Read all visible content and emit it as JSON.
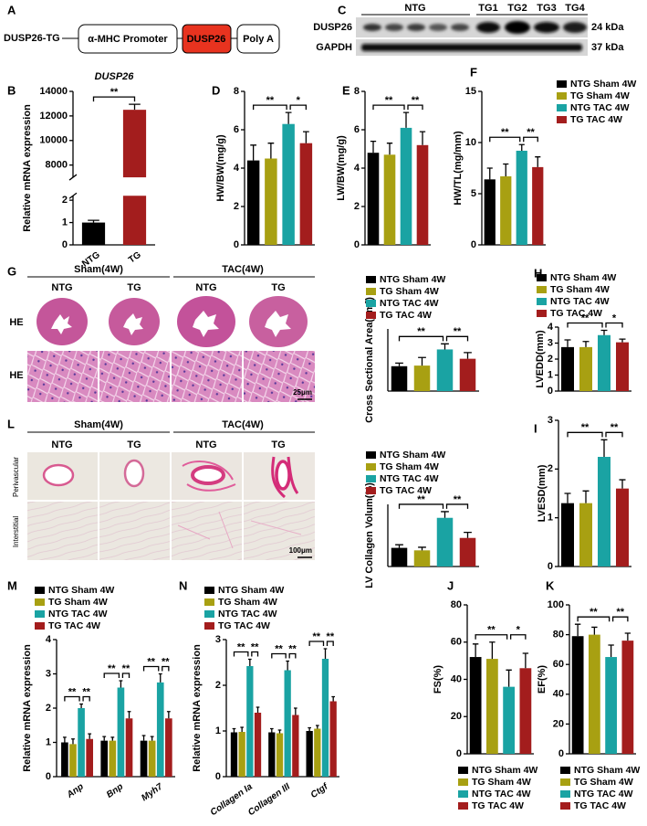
{
  "construct": {
    "label": "A",
    "name": "DUSP26-TG",
    "elements": [
      "α-MHC Promoter",
      "DUSP26",
      "Poly A"
    ]
  },
  "blot": {
    "label": "C",
    "groups": [
      "NTG",
      "TG1",
      "TG2",
      "TG3",
      "TG4"
    ],
    "rows": [
      {
        "name": "DUSP26",
        "size": "24 kDa"
      },
      {
        "name": "GAPDH",
        "size": "37 kDa"
      }
    ]
  },
  "histology": [
    {
      "label": "G",
      "conditions": [
        "Sham(4W)",
        "TAC(4W)"
      ],
      "columns": [
        "NTG",
        "TG",
        "NTG",
        "TG"
      ],
      "rows": [
        "HE",
        "HE"
      ],
      "scale_bar": "25μm"
    },
    {
      "label": "L",
      "conditions": [
        "Sham(4W)",
        "TAC(4W)"
      ],
      "columns": [
        "NTG",
        "TG",
        "NTG",
        "TG"
      ],
      "rows": [
        "Perivascular",
        "Interstitial"
      ],
      "scale_bar": "100μm"
    }
  ],
  "chart_data": [
    {
      "type": "bar",
      "label": "B",
      "title": "DUSP26",
      "ylabel": "Relative mRNA expression",
      "categories": [
        "NTG",
        "TG"
      ],
      "values": [
        1.0,
        12500
      ],
      "errors": [
        0.1,
        450
      ],
      "colors": [
        "#000000",
        "#a31d1d"
      ],
      "ylim": [
        0,
        14000
      ],
      "axis_break": [
        2.2,
        7000
      ],
      "yticks": [
        0,
        1,
        2,
        8000,
        10000,
        12000,
        14000
      ],
      "annotations": [
        "**"
      ]
    },
    {
      "type": "bar",
      "label": "D",
      "ylabel": "HW/BW(mg/g)",
      "ylim": [
        0,
        8
      ],
      "yticks": [
        0,
        2,
        4,
        6,
        8
      ],
      "annotations": [
        "**",
        "*"
      ],
      "series": [
        {
          "color": "#000000",
          "values": [
            4.4
          ],
          "errors": [
            0.8
          ]
        },
        {
          "color": "#a8a012",
          "values": [
            4.5
          ],
          "errors": [
            0.8
          ]
        },
        {
          "color": "#1aa3a3",
          "values": [
            6.3
          ],
          "errors": [
            0.6
          ]
        },
        {
          "color": "#a31d1d",
          "values": [
            5.3
          ],
          "errors": [
            0.6
          ]
        }
      ]
    },
    {
      "type": "bar",
      "label": "E",
      "ylabel": "LW/BW(mg/g)",
      "ylim": [
        0,
        8
      ],
      "yticks": [
        0,
        2,
        4,
        6,
        8
      ],
      "annotations": [
        "**",
        "**"
      ],
      "series": [
        {
          "color": "#000000",
          "values": [
            4.8
          ],
          "errors": [
            0.6
          ]
        },
        {
          "color": "#a8a012",
          "values": [
            4.7
          ],
          "errors": [
            0.6
          ]
        },
        {
          "color": "#1aa3a3",
          "values": [
            6.1
          ],
          "errors": [
            0.8
          ]
        },
        {
          "color": "#a31d1d",
          "values": [
            5.2
          ],
          "errors": [
            0.7
          ]
        }
      ]
    },
    {
      "type": "bar",
      "label": "F",
      "ylabel": "HW/TL(mg/mm)",
      "ylim": [
        0,
        15
      ],
      "yticks": [
        0,
        5,
        10,
        15
      ],
      "annotations": [
        "**",
        "**"
      ],
      "legend": "right",
      "series": [
        {
          "name": "NTG Sham 4W",
          "color": "#000000",
          "values": [
            6.4
          ],
          "errors": [
            1.1
          ]
        },
        {
          "name": "TG Sham 4W",
          "color": "#a8a012",
          "values": [
            6.7
          ],
          "errors": [
            1.2
          ]
        },
        {
          "name": "NTG TAC 4W",
          "color": "#1aa3a3",
          "values": [
            9.2
          ],
          "errors": [
            0.6
          ]
        },
        {
          "name": "TG TAC 4W",
          "color": "#a31d1d",
          "values": [
            7.6
          ],
          "errors": [
            1.0
          ]
        }
      ]
    },
    {
      "type": "bar",
      "ylabel": "Cross Sectional Area(μm²)",
      "ylim": [
        0,
        500
      ],
      "annotations": [
        "**",
        "**"
      ],
      "legend": "top",
      "series": [
        {
          "name": "NTG Sham 4W",
          "color": "#000000",
          "values": [
            200
          ],
          "errors": [
            25
          ]
        },
        {
          "name": "TG Sham 4W",
          "color": "#a8a012",
          "values": [
            205
          ],
          "errors": [
            65
          ]
        },
        {
          "name": "NTG TAC 4W",
          "color": "#1aa3a3",
          "values": [
            335
          ],
          "errors": [
            45
          ]
        },
        {
          "name": "TG TAC 4W",
          "color": "#a31d1d",
          "values": [
            260
          ],
          "errors": [
            50
          ]
        }
      ]
    },
    {
      "type": "bar",
      "label": "H",
      "ylabel": "LVEDD(mm)",
      "ylim": [
        0,
        4
      ],
      "yticks": [
        0,
        1,
        2,
        3,
        4
      ],
      "annotations": [
        "**",
        "*"
      ],
      "legend": "top",
      "series": [
        {
          "name": "NTG Sham 4W",
          "color": "#000000",
          "values": [
            2.75
          ],
          "errors": [
            0.45
          ]
        },
        {
          "name": "TG Sham 4W",
          "color": "#a8a012",
          "values": [
            2.75
          ],
          "errors": [
            0.35
          ]
        },
        {
          "name": "NTG TAC 4W",
          "color": "#1aa3a3",
          "values": [
            3.5
          ],
          "errors": [
            0.3
          ]
        },
        {
          "name": "TG TAC 4W",
          "color": "#a31d1d",
          "values": [
            3.05
          ],
          "errors": [
            0.2
          ]
        }
      ]
    },
    {
      "type": "bar",
      "ylabel": "LV Collagen Volum(%)",
      "ylim": [
        0,
        3
      ],
      "annotations": [
        "**",
        "**"
      ],
      "legend": "top",
      "series": [
        {
          "name": "NTG Sham 4W",
          "color": "#000000",
          "values": [
            0.9
          ],
          "errors": [
            0.15
          ]
        },
        {
          "name": "TG Sham 4W",
          "color": "#a8a012",
          "values": [
            0.78
          ],
          "errors": [
            0.15
          ]
        },
        {
          "name": "NTG TAC 4W",
          "color": "#1aa3a3",
          "values": [
            2.35
          ],
          "errors": [
            0.3
          ]
        },
        {
          "name": "TG TAC 4W",
          "color": "#a31d1d",
          "values": [
            1.38
          ],
          "errors": [
            0.27
          ]
        }
      ]
    },
    {
      "type": "bar",
      "label": "I",
      "ylabel": "LVESD(mm)",
      "ylim": [
        0,
        3
      ],
      "yticks": [
        0,
        1,
        2,
        3
      ],
      "annotations": [
        "**",
        "**"
      ],
      "series": [
        {
          "color": "#000000",
          "values": [
            1.3
          ],
          "errors": [
            0.2
          ]
        },
        {
          "color": "#a8a012",
          "values": [
            1.3
          ],
          "errors": [
            0.25
          ]
        },
        {
          "color": "#1aa3a3",
          "values": [
            2.25
          ],
          "errors": [
            0.35
          ]
        },
        {
          "color": "#a31d1d",
          "values": [
            1.6
          ],
          "errors": [
            0.18
          ]
        }
      ]
    },
    {
      "type": "bar",
      "label": "M",
      "ylabel": "Relative mRNA expression",
      "categories": [
        "Anp",
        "Bnp",
        "Myh7"
      ],
      "ylim": [
        0,
        4
      ],
      "yticks": [
        0,
        1,
        2,
        3,
        4
      ],
      "annotations": [
        "**",
        "**",
        "**",
        "**",
        "**",
        "**"
      ],
      "legend": "top",
      "series": [
        {
          "name": "NTG Sham 4W",
          "color": "#000000",
          "values": [
            1.0,
            1.05,
            1.05
          ],
          "errors": [
            0.15,
            0.12,
            0.15
          ]
        },
        {
          "name": "TG Sham 4W",
          "color": "#a8a012",
          "values": [
            0.95,
            1.05,
            1.05
          ],
          "errors": [
            0.15,
            0.1,
            0.12
          ]
        },
        {
          "name": "NTG TAC 4W",
          "color": "#1aa3a3",
          "values": [
            2.0,
            2.6,
            2.75
          ],
          "errors": [
            0.12,
            0.2,
            0.25
          ]
        },
        {
          "name": "TG TAC 4W",
          "color": "#a31d1d",
          "values": [
            1.1,
            1.7,
            1.7
          ],
          "errors": [
            0.15,
            0.2,
            0.2
          ]
        }
      ]
    },
    {
      "type": "bar",
      "label": "N",
      "ylabel": "Relative mRNA expression",
      "categories": [
        "Collagen Ia",
        "Collagen III",
        "Ctgf"
      ],
      "ylim": [
        0,
        3
      ],
      "yticks": [
        0,
        1,
        2,
        3
      ],
      "annotations": [
        "**",
        "**",
        "**",
        "**",
        "**",
        "**"
      ],
      "legend": "top",
      "series": [
        {
          "name": "NTG Sham 4W",
          "color": "#000000",
          "values": [
            0.97,
            0.97,
            1.0
          ],
          "errors": [
            0.08,
            0.08,
            0.07
          ]
        },
        {
          "name": "TG Sham 4W",
          "color": "#a8a012",
          "values": [
            0.98,
            0.95,
            1.05
          ],
          "errors": [
            0.1,
            0.07,
            0.07
          ]
        },
        {
          "name": "NTG TAC 4W",
          "color": "#1aa3a3",
          "values": [
            2.42,
            2.33,
            2.58
          ],
          "errors": [
            0.15,
            0.2,
            0.22
          ]
        },
        {
          "name": "TG TAC 4W",
          "color": "#a31d1d",
          "values": [
            1.4,
            1.35,
            1.65
          ],
          "errors": [
            0.12,
            0.15,
            0.1
          ]
        }
      ]
    },
    {
      "type": "bar",
      "label": "J",
      "ylabel": "FS(%)",
      "ylim": [
        0,
        80
      ],
      "yticks": [
        0,
        20,
        40,
        60,
        80
      ],
      "annotations": [
        "**",
        "*"
      ],
      "legend": "bottom",
      "series": [
        {
          "name": "NTG Sham 4W",
          "color": "#000000",
          "values": [
            52
          ],
          "errors": [
            7
          ]
        },
        {
          "name": "TG Sham 4W",
          "color": "#a8a012",
          "values": [
            51
          ],
          "errors": [
            9
          ]
        },
        {
          "name": "NTG TAC 4W",
          "color": "#1aa3a3",
          "values": [
            36
          ],
          "errors": [
            9
          ]
        },
        {
          "name": "TG TAC 4W",
          "color": "#a31d1d",
          "values": [
            46
          ],
          "errors": [
            8
          ]
        }
      ]
    },
    {
      "type": "bar",
      "label": "K",
      "ylabel": "EF(%)",
      "ylim": [
        0,
        100
      ],
      "yticks": [
        0,
        20,
        40,
        60,
        80,
        100
      ],
      "annotations": [
        "**",
        "**"
      ],
      "legend": "bottom",
      "series": [
        {
          "name": "NTG Sham 4W",
          "color": "#000000",
          "values": [
            79
          ],
          "errors": [
            8
          ]
        },
        {
          "name": "TG Sham 4W",
          "color": "#a8a012",
          "values": [
            80
          ],
          "errors": [
            5
          ]
        },
        {
          "name": "NTG TAC 4W",
          "color": "#1aa3a3",
          "values": [
            65
          ],
          "errors": [
            8
          ]
        },
        {
          "name": "TG TAC 4W",
          "color": "#a31d1d",
          "values": [
            76
          ],
          "errors": [
            5
          ]
        }
      ]
    }
  ]
}
